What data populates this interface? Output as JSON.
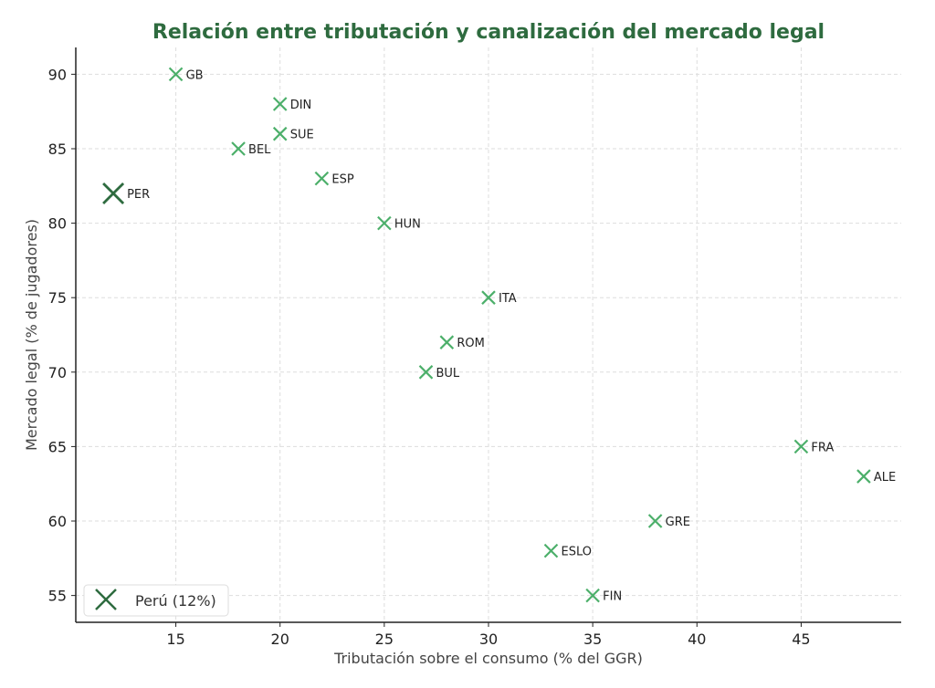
{
  "chart_data": {
    "type": "scatter",
    "title": "Relación entre tributación y canalización del mercado legal",
    "xlabel": "Tributación sobre el consumo (% del GGR)",
    "ylabel": "Mercado legal (% de jugadores)",
    "xlim": [
      10.2,
      49.8
    ],
    "ylim": [
      53.2,
      91.8
    ],
    "xticks": [
      15,
      20,
      25,
      30,
      35,
      40,
      45
    ],
    "yticks": [
      55,
      60,
      65,
      70,
      75,
      80,
      85,
      90
    ],
    "grid": true,
    "legend": {
      "position": "bottom-left",
      "entries": [
        "Perú (12%)"
      ]
    },
    "colors": {
      "points": "#4caf6a",
      "highlight": "#2e6b3f",
      "title": "#2e6b3f"
    },
    "points": [
      {
        "label": "GB",
        "x": 15,
        "y": 90
      },
      {
        "label": "DIN",
        "x": 20,
        "y": 88
      },
      {
        "label": "SUE",
        "x": 20,
        "y": 86
      },
      {
        "label": "BEL",
        "x": 18,
        "y": 85
      },
      {
        "label": "ESP",
        "x": 22,
        "y": 83
      },
      {
        "label": "HUN",
        "x": 25,
        "y": 80
      },
      {
        "label": "ITA",
        "x": 30,
        "y": 75
      },
      {
        "label": "ROM",
        "x": 28,
        "y": 72
      },
      {
        "label": "BUL",
        "x": 27,
        "y": 70
      },
      {
        "label": "FRA",
        "x": 45,
        "y": 65
      },
      {
        "label": "ALE",
        "x": 48,
        "y": 63
      },
      {
        "label": "GRE",
        "x": 38,
        "y": 60
      },
      {
        "label": "ESLO",
        "x": 33,
        "y": 58
      },
      {
        "label": "FIN",
        "x": 35,
        "y": 55
      }
    ],
    "highlight": {
      "label": "PER",
      "x": 12,
      "y": 82,
      "legend": "Perú (12%)"
    }
  }
}
